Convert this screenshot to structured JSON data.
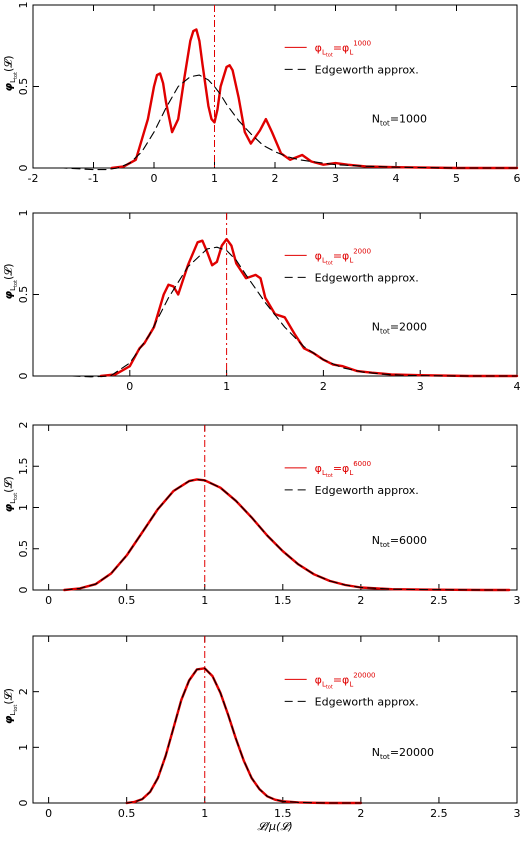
{
  "colors": {
    "exact": "#e00000",
    "approx": "#000000",
    "mean_line": "#e00000"
  },
  "xlabel": "𝓛/μ(𝓛)",
  "chart_data": [
    {
      "type": "line",
      "N": "1000",
      "xlim": [
        -2,
        6
      ],
      "ylim": [
        0,
        1.0
      ],
      "xticks": [
        -2,
        -1,
        0,
        1,
        2,
        3,
        4,
        5,
        6
      ],
      "xtick_labels": [
        "-2",
        "-1",
        "0",
        "1",
        "2",
        "3",
        "4",
        "5",
        "6"
      ],
      "yticks": [
        0,
        0.5,
        1
      ],
      "ytick_labels": [
        "0",
        "0.5",
        "1"
      ],
      "ylabel": "φ",
      "ylabel_sub": "L",
      "ylabel_subsub": "tot",
      "ylabel_arg": "(𝓛)",
      "mean_x": 1,
      "legend": {
        "exact_prefix": "φ",
        "exact_sub": "L",
        "exact_subsub": "tot",
        "exact_eq": "=φ",
        "exact_sub2": "L",
        "exact_sup": "1000",
        "approx": "Edgeworth approx."
      },
      "ntot_label": "N",
      "ntot_sub": "tot",
      "ntot_value": "=1000",
      "series": [
        {
          "style": "exact",
          "x": [
            -0.7,
            -0.5,
            -0.3,
            -0.1,
            0.0,
            0.05,
            0.1,
            0.15,
            0.2,
            0.3,
            0.4,
            0.5,
            0.6,
            0.65,
            0.7,
            0.75,
            0.8,
            0.9,
            0.95,
            1.0,
            1.05,
            1.1,
            1.2,
            1.25,
            1.3,
            1.4,
            1.5,
            1.6,
            1.75,
            1.85,
            1.95,
            2.1,
            2.25,
            2.45,
            2.6,
            2.8,
            3.0,
            3.2,
            3.5,
            4.0,
            5.0,
            6.0
          ],
          "y": [
            0.0,
            0.01,
            0.05,
            0.3,
            0.5,
            0.57,
            0.58,
            0.52,
            0.4,
            0.22,
            0.3,
            0.55,
            0.78,
            0.84,
            0.85,
            0.78,
            0.64,
            0.38,
            0.3,
            0.28,
            0.36,
            0.5,
            0.62,
            0.63,
            0.6,
            0.43,
            0.22,
            0.15,
            0.23,
            0.3,
            0.22,
            0.09,
            0.05,
            0.08,
            0.04,
            0.02,
            0.03,
            0.02,
            0.01,
            0.005,
            0.0,
            0.0
          ]
        },
        {
          "style": "approx",
          "x": [
            -2.0,
            -1.5,
            -1.0,
            -0.8,
            -0.6,
            -0.4,
            -0.2,
            0.0,
            0.2,
            0.4,
            0.6,
            0.75,
            0.9,
            1.0,
            1.1,
            1.2,
            1.4,
            1.6,
            1.8,
            2.0,
            2.2,
            2.4,
            2.6,
            2.8,
            3.0,
            3.3,
            3.6,
            4.0,
            5.0,
            6.0
          ],
          "y": [
            0.0,
            0.0,
            -0.01,
            -0.01,
            0.0,
            0.03,
            0.1,
            0.22,
            0.37,
            0.5,
            0.56,
            0.57,
            0.54,
            0.5,
            0.45,
            0.39,
            0.29,
            0.21,
            0.14,
            0.1,
            0.07,
            0.05,
            0.04,
            0.03,
            0.02,
            0.015,
            0.01,
            0.005,
            0.0,
            0.0
          ]
        }
      ]
    },
    {
      "type": "line",
      "N": "2000",
      "xlim": [
        -1,
        4
      ],
      "ylim": [
        0,
        1.0
      ],
      "xticks": [
        0,
        1,
        2,
        3,
        4
      ],
      "xtick_labels": [
        "0",
        "1",
        "2",
        "3",
        "4"
      ],
      "yticks": [
        0,
        0.5,
        1
      ],
      "ytick_labels": [
        "0",
        "0.5",
        "1"
      ],
      "ylabel": "φ",
      "ylabel_sub": "L",
      "ylabel_subsub": "tot",
      "ylabel_arg": "(𝓛)",
      "mean_x": 1,
      "legend": {
        "exact_prefix": "φ",
        "exact_sub": "L",
        "exact_subsub": "tot",
        "exact_eq": "=φ",
        "exact_sub2": "L",
        "exact_sup": "2000",
        "approx": "Edgeworth approx."
      },
      "ntot_label": "N",
      "ntot_sub": "tot",
      "ntot_value": "=2000",
      "series": [
        {
          "style": "exact",
          "x": [
            -0.3,
            -0.15,
            0.0,
            0.1,
            0.15,
            0.25,
            0.35,
            0.4,
            0.45,
            0.5,
            0.6,
            0.7,
            0.75,
            0.8,
            0.85,
            0.9,
            0.95,
            1.0,
            1.05,
            1.1,
            1.2,
            1.3,
            1.35,
            1.4,
            1.5,
            1.6,
            1.7,
            1.8,
            1.9,
            2.0,
            2.1,
            2.2,
            2.35,
            2.5,
            2.7,
            3.0,
            3.5,
            4.0
          ],
          "y": [
            0.0,
            0.01,
            0.06,
            0.17,
            0.2,
            0.3,
            0.5,
            0.56,
            0.55,
            0.5,
            0.68,
            0.82,
            0.83,
            0.76,
            0.68,
            0.7,
            0.8,
            0.84,
            0.8,
            0.69,
            0.6,
            0.62,
            0.6,
            0.48,
            0.38,
            0.36,
            0.26,
            0.17,
            0.14,
            0.1,
            0.07,
            0.06,
            0.03,
            0.02,
            0.01,
            0.005,
            0.0,
            0.0
          ]
        },
        {
          "style": "approx",
          "x": [
            -1.0,
            -0.6,
            -0.4,
            -0.2,
            0.0,
            0.2,
            0.4,
            0.6,
            0.8,
            0.9,
            1.0,
            1.1,
            1.2,
            1.4,
            1.6,
            1.8,
            2.0,
            2.2,
            2.4,
            2.6,
            2.8,
            3.0,
            3.5,
            4.0
          ],
          "y": [
            0.0,
            0.0,
            -0.005,
            0.0,
            0.08,
            0.25,
            0.48,
            0.67,
            0.78,
            0.79,
            0.77,
            0.71,
            0.62,
            0.45,
            0.3,
            0.18,
            0.1,
            0.05,
            0.025,
            0.012,
            0.005,
            0.002,
            0.0,
            0.0
          ]
        }
      ]
    },
    {
      "type": "line",
      "N": "6000",
      "xlim": [
        -0.1,
        3.0
      ],
      "ylim": [
        0,
        2.0
      ],
      "xticks": [
        0,
        0.5,
        1,
        1.5,
        2,
        2.5,
        3
      ],
      "xtick_labels": [
        "0",
        "0.5",
        "1",
        "1.5",
        "2",
        "2.5",
        "3"
      ],
      "yticks": [
        0,
        0.5,
        1,
        1.5,
        2
      ],
      "ytick_labels": [
        "0",
        "0.5",
        "1",
        "1.5",
        "2"
      ],
      "ylabel": "φ",
      "ylabel_sub": "L",
      "ylabel_subsub": "tot",
      "ylabel_arg": "(𝓛)",
      "mean_x": 1,
      "legend": {
        "exact_prefix": "φ",
        "exact_sub": "L",
        "exact_subsub": "tot",
        "exact_eq": "=φ",
        "exact_sub2": "L",
        "exact_sup": "6000",
        "approx": "Edgeworth approx."
      },
      "ntot_label": "N",
      "ntot_sub": "tot",
      "ntot_value": "=6000",
      "series": [
        {
          "style": "exact",
          "x": [
            0.1,
            0.2,
            0.3,
            0.4,
            0.5,
            0.6,
            0.7,
            0.8,
            0.9,
            0.95,
            1.0,
            1.1,
            1.2,
            1.3,
            1.4,
            1.5,
            1.6,
            1.7,
            1.8,
            1.9,
            2.0,
            2.2,
            2.4,
            2.6,
            2.8,
            2.95
          ],
          "y": [
            0.0,
            0.02,
            0.07,
            0.2,
            0.42,
            0.7,
            0.98,
            1.2,
            1.32,
            1.34,
            1.33,
            1.24,
            1.08,
            0.88,
            0.66,
            0.47,
            0.31,
            0.19,
            0.11,
            0.06,
            0.03,
            0.01,
            0.005,
            0.002,
            0.0,
            0.0
          ]
        },
        {
          "style": "approx",
          "x": [
            0.1,
            0.2,
            0.3,
            0.4,
            0.5,
            0.6,
            0.7,
            0.8,
            0.9,
            0.95,
            1.0,
            1.1,
            1.2,
            1.3,
            1.4,
            1.5,
            1.6,
            1.7,
            1.8,
            1.9,
            2.0,
            2.2,
            2.4,
            2.6,
            2.8,
            2.95
          ],
          "y": [
            0.0,
            0.02,
            0.07,
            0.2,
            0.42,
            0.7,
            0.98,
            1.2,
            1.32,
            1.34,
            1.33,
            1.24,
            1.08,
            0.88,
            0.66,
            0.47,
            0.31,
            0.19,
            0.11,
            0.06,
            0.03,
            0.01,
            0.005,
            0.002,
            0.0,
            0.0
          ]
        }
      ]
    },
    {
      "type": "line",
      "N": "20000",
      "xlim": [
        -0.1,
        3.0
      ],
      "ylim": [
        0,
        3.0
      ],
      "xticks": [
        0,
        0.5,
        1,
        1.5,
        2,
        2.5,
        3
      ],
      "xtick_labels": [
        "0",
        "0.5",
        "1",
        "1.5",
        "2",
        "2.5",
        "3"
      ],
      "yticks": [
        0,
        1,
        2
      ],
      "ytick_labels": [
        "0",
        "1",
        "2"
      ],
      "ylabel": "φ",
      "ylabel_sub": "L",
      "ylabel_subsub": "tot",
      "ylabel_arg": "(𝓛)",
      "mean_x": 1,
      "legend": {
        "exact_prefix": "φ",
        "exact_sub": "L",
        "exact_subsub": "tot",
        "exact_eq": "=φ",
        "exact_sub2": "L",
        "exact_sup": "20000",
        "approx": "Edgeworth approx."
      },
      "ntot_label": "N",
      "ntot_sub": "tot",
      "ntot_value": "=20000",
      "series": [
        {
          "style": "exact",
          "x": [
            0.5,
            0.55,
            0.6,
            0.65,
            0.7,
            0.75,
            0.8,
            0.85,
            0.9,
            0.95,
            1.0,
            1.05,
            1.1,
            1.15,
            1.2,
            1.25,
            1.3,
            1.35,
            1.4,
            1.45,
            1.5,
            1.6,
            1.7,
            1.8,
            2.0
          ],
          "y": [
            0.0,
            0.02,
            0.07,
            0.2,
            0.45,
            0.85,
            1.35,
            1.85,
            2.2,
            2.4,
            2.42,
            2.28,
            1.98,
            1.58,
            1.15,
            0.76,
            0.45,
            0.25,
            0.12,
            0.06,
            0.03,
            0.01,
            0.003,
            0.0,
            0.0
          ]
        },
        {
          "style": "approx",
          "x": [
            -0.1,
            0.0,
            0.2,
            0.4,
            0.5,
            0.55,
            0.6,
            0.65,
            0.7,
            0.75,
            0.8,
            0.85,
            0.9,
            0.95,
            1.0,
            1.05,
            1.1,
            1.15,
            1.2,
            1.25,
            1.3,
            1.35,
            1.4,
            1.45,
            1.5,
            1.6,
            1.7,
            1.8,
            2.0,
            2.5,
            3.0
          ],
          "y": [
            0.0,
            0.0,
            0.0,
            0.0,
            0.0,
            0.02,
            0.07,
            0.2,
            0.45,
            0.85,
            1.35,
            1.85,
            2.2,
            2.4,
            2.42,
            2.28,
            1.98,
            1.58,
            1.15,
            0.76,
            0.45,
            0.25,
            0.12,
            0.06,
            0.03,
            0.01,
            0.003,
            0.0,
            0.0,
            0.0,
            0.0
          ]
        }
      ]
    }
  ]
}
